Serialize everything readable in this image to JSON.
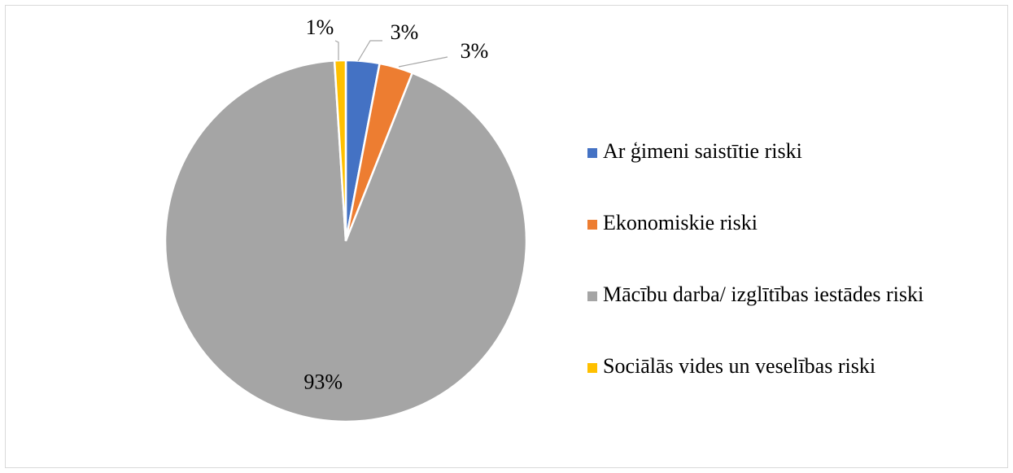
{
  "chart_data": {
    "type": "pie",
    "categories": [
      "Ar ģimeni saistītie riski",
      "Ekonomiskie riski",
      "Mācību darba/ izglītības iestādes riski",
      "Sociālās vides un veselības riski"
    ],
    "values": [
      3,
      3,
      93,
      1
    ],
    "value_labels": [
      "3%",
      "3%",
      "93%",
      "1%"
    ],
    "colors": [
      "#4472c4",
      "#ed7d31",
      "#a5a5a5",
      "#ffc000"
    ],
    "legend": "right"
  }
}
